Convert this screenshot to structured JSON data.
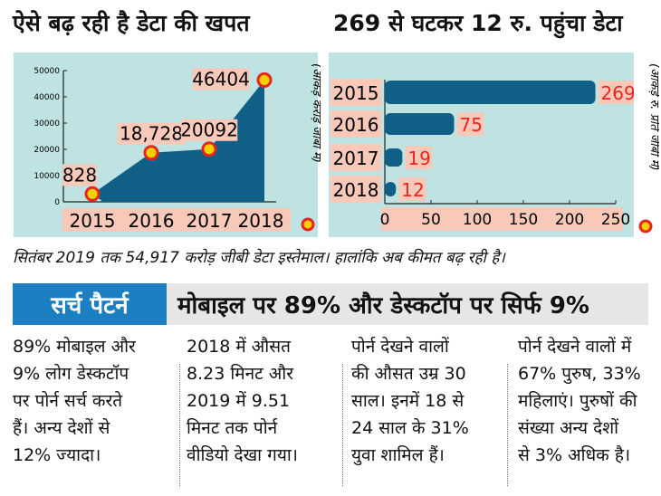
{
  "left_title": "ऐसे बढ़ रही है डेटा की खपत",
  "right_title": "269 से घटकर 12 रु. पहुंचा डेटा",
  "chart_data": [
    {
      "type": "area",
      "categories": [
        "2015",
        "2016",
        "2017",
        "2018"
      ],
      "values": [
        828,
        18728,
        20092,
        46404
      ],
      "data_labels": [
        "828",
        "18,728",
        "20092",
        "46404"
      ],
      "yticks": [
        "0",
        "10000",
        "20000",
        "30000",
        "40000",
        "50000"
      ],
      "ylim": [
        0,
        50000
      ],
      "unit_label": "(आंकड़े करोड़ जीबी में)",
      "color": "#0f5f86",
      "marker_color": "#f5d000",
      "marker_ring": "#e6261f"
    },
    {
      "type": "bar",
      "orientation": "horizontal",
      "categories": [
        "2015",
        "2016",
        "2017",
        "2018"
      ],
      "values": [
        269,
        75,
        19,
        12
      ],
      "data_labels": [
        "269",
        "75",
        "19",
        "12"
      ],
      "xticks": [
        "0",
        "50",
        "100",
        "150",
        "200",
        "250"
      ],
      "xlim": [
        0,
        250
      ],
      "unit_label": "(आंकड़े रु. प्रति जीबी में)",
      "color": "#0f5f86",
      "label_color": "#e6261f"
    }
  ],
  "caption": "सितंबर 2019 तक 54,917 करोड़ जीबी डेटा इस्तेमाल। हालांकि अब कीमत बढ़ रही है।",
  "section": {
    "label": "सर्च पैटर्न",
    "headline": "मोबाइल पर 89% और डेस्कटॉप पर सिर्फ 9%",
    "accent": "#1b7fc1"
  },
  "columns": [
    "89% मोबाइल और\n9% लोग डेस्कटॉप\nपर पोर्न सर्च करते\nहैं। अन्य देशों से\n12% ज्यादा।",
    "2018 में औसत\n8.23 मिनट और\n2019 में 9.51\nमिनट तक पोर्न\nवीडियो देखा गया।",
    "पोर्न देखने वालों\nकी औसत उम्र 30\nसाल। इनमें 18 से\n24 साल के 31%\nयुवा शामिल हैं।",
    "पोर्न देखने वालों में\n67% पुरुष, 33%\nमहिलाएं। पुरुषों की\nसंख्या अन्य देशों\nसे 3% अधिक है।"
  ]
}
